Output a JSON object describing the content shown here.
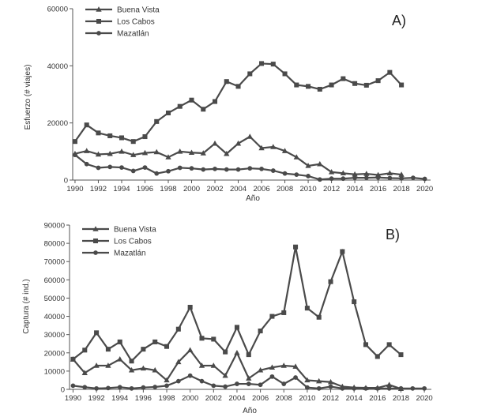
{
  "chart_data": [
    {
      "type": "line",
      "panel_label": "A)",
      "ylabel": "Esfuerzo (# viajes)",
      "xlabel": "Año",
      "ylim": [
        0,
        60000
      ],
      "yticks": [
        0,
        20000,
        40000,
        60000
      ],
      "xticks": [
        1990,
        1992,
        1994,
        1996,
        1998,
        2000,
        2002,
        2004,
        2006,
        2008,
        2010,
        2012,
        2014,
        2016,
        2018,
        2020
      ],
      "legend_position": "top-left",
      "series": [
        {
          "name": "Buena Vista",
          "marker": "triangle",
          "x": [
            1990,
            1991,
            1992,
            1993,
            1994,
            1995,
            1996,
            1997,
            1998,
            1999,
            2000,
            2001,
            2002,
            2003,
            2004,
            2005,
            2006,
            2007,
            2008,
            2009,
            2010,
            2011,
            2012,
            2013,
            2014,
            2015,
            2016,
            2017,
            2018
          ],
          "y": [
            9200,
            10200,
            9000,
            9200,
            10000,
            8800,
            9500,
            9800,
            8000,
            10000,
            9600,
            9400,
            12800,
            9200,
            12800,
            15200,
            11200,
            11600,
            10200,
            8000,
            5000,
            5600,
            2800,
            2400,
            2000,
            2200,
            1800,
            2400,
            1900
          ]
        },
        {
          "name": "Los Cabos",
          "marker": "square",
          "x": [
            1990,
            1991,
            1992,
            1993,
            1994,
            1995,
            1996,
            1997,
            1998,
            1999,
            2000,
            2001,
            2002,
            2003,
            2004,
            2005,
            2006,
            2007,
            2008,
            2009,
            2010,
            2011,
            2012,
            2013,
            2014,
            2015,
            2016,
            2017,
            2018
          ],
          "y": [
            13500,
            19300,
            16500,
            15500,
            14800,
            13500,
            15200,
            20500,
            23500,
            25800,
            28000,
            24800,
            27500,
            34500,
            32800,
            37200,
            40800,
            40600,
            37200,
            33300,
            32800,
            31800,
            33300,
            35500,
            33800,
            33200,
            34800,
            37700,
            33300
          ]
        },
        {
          "name": "Mazatlán",
          "marker": "circle",
          "x": [
            1990,
            1991,
            1992,
            1993,
            1994,
            1995,
            1996,
            1997,
            1998,
            1999,
            2000,
            2001,
            2002,
            2003,
            2004,
            2005,
            2006,
            2007,
            2008,
            2009,
            2010,
            2011,
            2012,
            2013,
            2014,
            2015,
            2016,
            2017,
            2018,
            2019,
            2020
          ],
          "y": [
            8800,
            5600,
            4300,
            4600,
            4400,
            3200,
            4400,
            2300,
            3100,
            4300,
            4100,
            3700,
            3900,
            3700,
            3700,
            4100,
            3900,
            3300,
            2300,
            1900,
            1400,
            200,
            500,
            500,
            800,
            800,
            900,
            700,
            600,
            800,
            400
          ]
        }
      ]
    },
    {
      "type": "line",
      "panel_label": "B)",
      "ylabel": "Captura (# ind.)",
      "xlabel": "Año",
      "ylim": [
        0,
        90000
      ],
      "yticks": [
        0,
        10000,
        20000,
        30000,
        40000,
        50000,
        60000,
        70000,
        80000,
        90000
      ],
      "xticks": [
        1990,
        1992,
        1994,
        1996,
        1998,
        2000,
        2002,
        2004,
        2006,
        2008,
        2010,
        2012,
        2014,
        2016,
        2018,
        2020
      ],
      "legend_position": "top-left",
      "series": [
        {
          "name": "Buena Vista",
          "marker": "triangle",
          "x": [
            1990,
            1991,
            1992,
            1993,
            1994,
            1995,
            1996,
            1997,
            1998,
            1999,
            2000,
            2001,
            2002,
            2003,
            2004,
            2005,
            2006,
            2007,
            2008,
            2009,
            2010,
            2011,
            2012,
            2013,
            2014,
            2015,
            2016,
            2017,
            2018
          ],
          "y": [
            16500,
            9000,
            13000,
            13000,
            16500,
            10500,
            11500,
            10500,
            5000,
            15000,
            21500,
            13000,
            13000,
            7500,
            20000,
            6000,
            10500,
            12000,
            13000,
            12500,
            5000,
            4500,
            4000,
            1500,
            1000,
            800,
            800,
            2500,
            300
          ]
        },
        {
          "name": "Los Cabos",
          "marker": "square",
          "x": [
            1990,
            1991,
            1992,
            1993,
            1994,
            1995,
            1996,
            1997,
            1998,
            1999,
            2000,
            2001,
            2002,
            2003,
            2004,
            2005,
            2006,
            2007,
            2008,
            2009,
            2010,
            2011,
            2012,
            2013,
            2014,
            2015,
            2016,
            2017,
            2018
          ],
          "y": [
            16500,
            21500,
            31000,
            22000,
            26000,
            15500,
            22000,
            26000,
            23500,
            33000,
            45000,
            28000,
            27500,
            20500,
            34000,
            19000,
            32000,
            40000,
            42000,
            78000,
            44500,
            39500,
            59000,
            75500,
            48000,
            24500,
            18000,
            24500,
            19000
          ]
        },
        {
          "name": "Mazatlán",
          "marker": "circle",
          "x": [
            1990,
            1991,
            1992,
            1993,
            1994,
            1995,
            1996,
            1997,
            1998,
            1999,
            2000,
            2001,
            2002,
            2003,
            2004,
            2005,
            2006,
            2007,
            2008,
            2009,
            2010,
            2011,
            2012,
            2013,
            2014,
            2015,
            2016,
            2017,
            2018,
            2019,
            2020
          ],
          "y": [
            2000,
            1200,
            500,
            700,
            1200,
            500,
            1000,
            1300,
            2000,
            4500,
            7500,
            4500,
            2000,
            1500,
            3000,
            3000,
            2500,
            7000,
            3000,
            6500,
            1000,
            500,
            1500,
            500,
            500,
            500,
            500,
            500,
            500,
            500,
            500
          ]
        }
      ]
    }
  ]
}
